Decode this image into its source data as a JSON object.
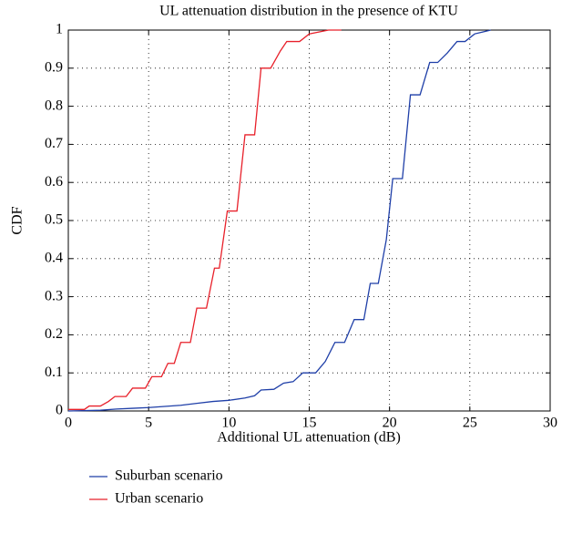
{
  "chart_data": {
    "type": "line",
    "title": "UL attenuation distribution in the presence of KTU",
    "xlabel": "Additional UL attenuation (dB)",
    "ylabel": "CDF",
    "xlim": [
      0,
      30
    ],
    "xticks": [
      0,
      5,
      10,
      15,
      20,
      25,
      30
    ],
    "ylim": [
      0,
      1
    ],
    "yticks": [
      0,
      0.1,
      0.2,
      0.3,
      0.4,
      0.5,
      0.6,
      0.7,
      0.8,
      0.9,
      1
    ],
    "grid": true,
    "legend": "bottom",
    "series": [
      {
        "name": "Suburban scenario",
        "color": "#1f3fa8",
        "x": [
          0,
          2,
          3,
          4,
          5,
          6,
          7,
          8,
          9,
          10,
          11,
          11.6,
          12,
          12.8,
          13.4,
          14,
          14.6,
          15.4,
          16,
          16.6,
          17.2,
          17.8,
          18.4,
          18.8,
          19.3,
          19.8,
          20.2,
          20.8,
          21.3,
          21.9,
          22.5,
          23,
          23.6,
          24.2,
          24.7,
          25.3,
          25.8,
          26.3
        ],
        "values": [
          0,
          0.002,
          0.005,
          0.007,
          0.009,
          0.012,
          0.015,
          0.02,
          0.025,
          0.028,
          0.034,
          0.04,
          0.055,
          0.057,
          0.073,
          0.077,
          0.1,
          0.1,
          0.13,
          0.18,
          0.18,
          0.24,
          0.24,
          0.335,
          0.335,
          0.45,
          0.61,
          0.61,
          0.83,
          0.83,
          0.915,
          0.915,
          0.94,
          0.97,
          0.97,
          0.99,
          0.995,
          1
        ]
      },
      {
        "name": "Urban scenario",
        "color": "#e8202a",
        "x": [
          0,
          1,
          1.3,
          2,
          2.5,
          2.9,
          3.6,
          4,
          4.8,
          5.2,
          5.8,
          6.2,
          6.6,
          7,
          7.6,
          8,
          8.6,
          9.1,
          9.4,
          9.9,
          10.5,
          11,
          11.6,
          12,
          12.6,
          13.2,
          13.6,
          14.4,
          15,
          15.6,
          16.2,
          17
        ],
        "values": [
          0.004,
          0.004,
          0.013,
          0.013,
          0.025,
          0.038,
          0.038,
          0.06,
          0.06,
          0.09,
          0.09,
          0.125,
          0.125,
          0.18,
          0.18,
          0.27,
          0.27,
          0.375,
          0.375,
          0.525,
          0.525,
          0.725,
          0.725,
          0.9,
          0.9,
          0.945,
          0.97,
          0.97,
          0.99,
          0.995,
          1,
          1
        ]
      }
    ]
  }
}
